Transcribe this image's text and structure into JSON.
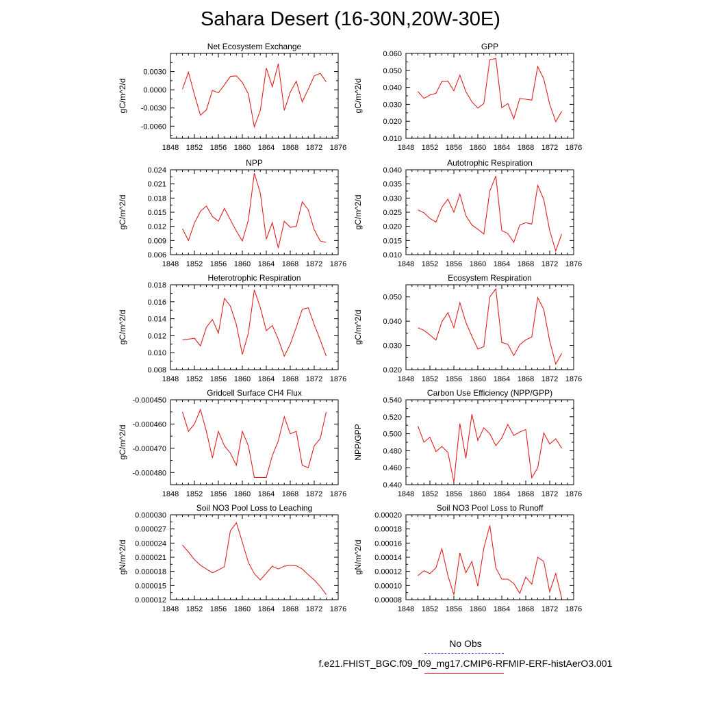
{
  "title": "Sahara Desert (16-30N,20W-30E)",
  "legend": {
    "obs_label": "No Obs",
    "case_label": "f.e21.FHIST_BGC.f09_f09_mg17.CMIP6-RFMIP-ERF-histAerO3.001",
    "obs_color": "#5a5af0",
    "case_color": "#e02020"
  },
  "chart_data": [
    {
      "type": "line",
      "title": "Net Ecosystem Exchange",
      "ylabel": "gC/m^2/d",
      "xlim": [
        1848,
        1876
      ],
      "ylim": [
        -0.008,
        0.006
      ],
      "xticks": [
        "1848",
        "1852",
        "1856",
        "1860",
        "1864",
        "1868",
        "1872",
        "1876"
      ],
      "yticks": [
        -0.006,
        -0.003,
        0.0,
        0.003
      ],
      "ytick_labels": [
        "-0.0060",
        "-0.0030",
        "0.0000",
        "0.0030"
      ],
      "x": [
        1850,
        1851,
        1852,
        1853,
        1854,
        1855,
        1856,
        1857,
        1858,
        1859,
        1860,
        1861,
        1862,
        1863,
        1864,
        1865,
        1866,
        1867,
        1868,
        1869,
        1870,
        1871,
        1872,
        1873,
        1874
      ],
      "series": [
        {
          "values": [
            0.0001,
            0.0029,
            -0.0008,
            -0.0042,
            -0.0033,
            -0.0001,
            -0.0005,
            0.0008,
            0.0022,
            0.0023,
            0.0012,
            -0.0007,
            -0.0061,
            -0.0034,
            0.0036,
            0.0005,
            0.0043,
            -0.0034,
            -0.0004,
            0.0014,
            -0.002,
            0.0001,
            0.0023,
            0.0027,
            0.0013
          ],
          "color": "#e02020"
        }
      ]
    },
    {
      "type": "line",
      "title": "GPP",
      "ylabel": "gC/m^2/d",
      "xlim": [
        1848,
        1876
      ],
      "ylim": [
        0.01,
        0.06
      ],
      "xticks": [
        "1848",
        "1852",
        "1856",
        "1860",
        "1864",
        "1868",
        "1872",
        "1876"
      ],
      "yticks": [
        0.01,
        0.02,
        0.03,
        0.04,
        0.05,
        0.06
      ],
      "ytick_labels": [
        "0.010",
        "0.020",
        "0.030",
        "0.040",
        "0.050",
        "0.060"
      ],
      "x": [
        1850,
        1851,
        1852,
        1853,
        1854,
        1855,
        1856,
        1857,
        1858,
        1859,
        1860,
        1861,
        1862,
        1863,
        1864,
        1865,
        1866,
        1867,
        1868,
        1869,
        1870,
        1871,
        1872,
        1873,
        1874
      ],
      "series": [
        {
          "values": [
            0.0375,
            0.0335,
            0.0355,
            0.0365,
            0.0435,
            0.0437,
            0.038,
            0.0472,
            0.0375,
            0.0315,
            0.0278,
            0.0305,
            0.0563,
            0.057,
            0.028,
            0.0305,
            0.0215,
            0.0335,
            0.033,
            0.0325,
            0.0522,
            0.045,
            0.03,
            0.0198,
            0.0258
          ],
          "color": "#e02020"
        }
      ]
    },
    {
      "type": "line",
      "title": "NPP",
      "ylabel": "gC/m^2/d",
      "xlim": [
        1848,
        1876
      ],
      "ylim": [
        0.006,
        0.024
      ],
      "xticks": [
        "1848",
        "1852",
        "1856",
        "1860",
        "1864",
        "1868",
        "1872",
        "1876"
      ],
      "yticks": [
        0.006,
        0.009,
        0.012,
        0.015,
        0.018,
        0.021,
        0.024
      ],
      "ytick_labels": [
        "0.006",
        "0.009",
        "0.012",
        "0.015",
        "0.018",
        "0.021",
        "0.024"
      ],
      "x": [
        1850,
        1851,
        1852,
        1853,
        1854,
        1855,
        1856,
        1857,
        1858,
        1859,
        1860,
        1861,
        1862,
        1863,
        1864,
        1865,
        1866,
        1867,
        1868,
        1869,
        1870,
        1871,
        1872,
        1873,
        1874
      ],
      "series": [
        {
          "values": [
            0.0115,
            0.009,
            0.0127,
            0.0152,
            0.0163,
            0.0141,
            0.0131,
            0.0158,
            0.0134,
            0.011,
            0.0089,
            0.0133,
            0.0233,
            0.019,
            0.0093,
            0.0128,
            0.0074,
            0.0131,
            0.0118,
            0.012,
            0.0172,
            0.0155,
            0.0113,
            0.0089,
            0.0086
          ],
          "color": "#e02020"
        }
      ]
    },
    {
      "type": "line",
      "title": "Autotrophic Respiration",
      "ylabel": "gC/m^2/d",
      "xlim": [
        1848,
        1876
      ],
      "ylim": [
        0.01,
        0.04
      ],
      "xticks": [
        "1848",
        "1852",
        "1856",
        "1860",
        "1864",
        "1868",
        "1872",
        "1876"
      ],
      "yticks": [
        0.01,
        0.015,
        0.02,
        0.025,
        0.03,
        0.035,
        0.04
      ],
      "ytick_labels": [
        "0.010",
        "0.015",
        "0.020",
        "0.025",
        "0.030",
        "0.035",
        "0.040"
      ],
      "x": [
        1850,
        1851,
        1852,
        1853,
        1854,
        1855,
        1856,
        1857,
        1858,
        1859,
        1860,
        1861,
        1862,
        1863,
        1864,
        1865,
        1866,
        1867,
        1868,
        1869,
        1870,
        1871,
        1872,
        1873,
        1874
      ],
      "series": [
        {
          "values": [
            0.0258,
            0.0248,
            0.0228,
            0.0215,
            0.0268,
            0.0296,
            0.025,
            0.0314,
            0.0238,
            0.0205,
            0.019,
            0.0173,
            0.0325,
            0.0378,
            0.0185,
            0.0175,
            0.0143,
            0.0205,
            0.0213,
            0.0208,
            0.0345,
            0.0295,
            0.0185,
            0.0113,
            0.0173
          ],
          "color": "#e02020"
        }
      ]
    },
    {
      "type": "line",
      "title": "Heterotrophic Respiration",
      "ylabel": "gC/m^2/d",
      "xlim": [
        1848,
        1876
      ],
      "ylim": [
        0.008,
        0.018
      ],
      "xticks": [
        "1848",
        "1852",
        "1856",
        "1860",
        "1864",
        "1868",
        "1872",
        "1876"
      ],
      "yticks": [
        0.008,
        0.01,
        0.012,
        0.014,
        0.016,
        0.018
      ],
      "ytick_labels": [
        "0.008",
        "0.010",
        "0.012",
        "0.014",
        "0.016",
        "0.018"
      ],
      "x": [
        1850,
        1851,
        1852,
        1853,
        1854,
        1855,
        1856,
        1857,
        1858,
        1859,
        1860,
        1861,
        1862,
        1863,
        1864,
        1865,
        1866,
        1867,
        1868,
        1869,
        1870,
        1871,
        1872,
        1873,
        1874
      ],
      "series": [
        {
          "values": [
            0.0115,
            0.0116,
            0.0117,
            0.0108,
            0.013,
            0.0139,
            0.0123,
            0.0164,
            0.0155,
            0.0133,
            0.0098,
            0.0123,
            0.0174,
            0.0153,
            0.0126,
            0.0132,
            0.0116,
            0.0096,
            0.011,
            0.013,
            0.0151,
            0.0153,
            0.0133,
            0.0115,
            0.0096
          ],
          "color": "#e02020"
        }
      ]
    },
    {
      "type": "line",
      "title": "Ecosystem Respiration",
      "ylabel": "gC/m^2/d",
      "xlim": [
        1848,
        1876
      ],
      "ylim": [
        0.02,
        0.055
      ],
      "xticks": [
        "1848",
        "1852",
        "1856",
        "1860",
        "1864",
        "1868",
        "1872",
        "1876"
      ],
      "yticks": [
        0.02,
        0.03,
        0.04,
        0.05
      ],
      "ytick_labels": [
        "0.020",
        "0.030",
        "0.040",
        "0.050"
      ],
      "x": [
        1850,
        1851,
        1852,
        1853,
        1854,
        1855,
        1856,
        1857,
        1858,
        1859,
        1860,
        1861,
        1862,
        1863,
        1864,
        1865,
        1866,
        1867,
        1868,
        1869,
        1870,
        1871,
        1872,
        1873,
        1874
      ],
      "series": [
        {
          "values": [
            0.0373,
            0.0362,
            0.0343,
            0.0322,
            0.0398,
            0.0435,
            0.0373,
            0.0476,
            0.0395,
            0.0338,
            0.0285,
            0.0295,
            0.05,
            0.0533,
            0.0312,
            0.0305,
            0.0258,
            0.0303,
            0.0323,
            0.0335,
            0.0497,
            0.0448,
            0.0318,
            0.0223,
            0.0267
          ],
          "color": "#e02020"
        }
      ]
    },
    {
      "type": "line",
      "title": "Gridcell Surface CH4 Flux",
      "ylabel": "gC/m^2/d",
      "xlim": [
        1848,
        1876
      ],
      "ylim": [
        -0.000485,
        -0.00045
      ],
      "xticks": [
        "1848",
        "1852",
        "1856",
        "1860",
        "1864",
        "1868",
        "1872",
        "1876"
      ],
      "yticks": [
        -0.00048,
        -0.00047,
        -0.00046,
        -0.00045
      ],
      "ytick_labels": [
        "-0.000480",
        "-0.000470",
        "-0.000460",
        "-0.000450"
      ],
      "x": [
        1850,
        1851,
        1852,
        1853,
        1854,
        1855,
        1856,
        1857,
        1858,
        1859,
        1860,
        1861,
        1862,
        1863,
        1864,
        1865,
        1866,
        1867,
        1868,
        1869,
        1870,
        1871,
        1872,
        1873,
        1874
      ],
      "series": [
        {
          "values": [
            -0.000455,
            -0.000463,
            -0.00046,
            -0.000454,
            -0.000463,
            -0.000474,
            -0.000463,
            -0.000469,
            -0.000472,
            -0.000477,
            -0.000463,
            -0.000469,
            -0.000482,
            -0.000482,
            -0.000482,
            -0.000473,
            -0.000467,
            -0.000457,
            -0.000464,
            -0.000463,
            -0.000477,
            -0.000478,
            -0.000469,
            -0.000466,
            -0.000455
          ],
          "color": "#e02020"
        }
      ]
    },
    {
      "type": "line",
      "title": "Carbon Use Efficiency (NPP/GPP)",
      "ylabel": "NPP/GPP",
      "xlim": [
        1848,
        1876
      ],
      "ylim": [
        0.44,
        0.54
      ],
      "xticks": [
        "1848",
        "1852",
        "1856",
        "1860",
        "1864",
        "1868",
        "1872",
        "1876"
      ],
      "yticks": [
        0.44,
        0.46,
        0.48,
        0.5,
        0.52,
        0.54
      ],
      "ytick_labels": [
        "0.440",
        "0.460",
        "0.480",
        "0.500",
        "0.520",
        "0.540"
      ],
      "x": [
        1850,
        1851,
        1852,
        1853,
        1854,
        1855,
        1856,
        1857,
        1858,
        1859,
        1860,
        1861,
        1862,
        1863,
        1864,
        1865,
        1866,
        1867,
        1868,
        1869,
        1870,
        1871,
        1872,
        1873,
        1874
      ],
      "series": [
        {
          "values": [
            0.509,
            0.49,
            0.496,
            0.479,
            0.485,
            0.478,
            0.443,
            0.512,
            0.471,
            0.523,
            0.492,
            0.507,
            0.5,
            0.486,
            0.495,
            0.511,
            0.498,
            0.502,
            0.505,
            0.448,
            0.46,
            0.501,
            0.488,
            0.494,
            0.483
          ],
          "color": "#e02020"
        }
      ]
    },
    {
      "type": "line",
      "title": "Soil NO3 Pool Loss to Leaching",
      "ylabel": "gN/m^2/d",
      "xlim": [
        1848,
        1876
      ],
      "ylim": [
        1.2e-05,
        3e-05
      ],
      "xticks": [
        "1848",
        "1852",
        "1856",
        "1860",
        "1864",
        "1868",
        "1872",
        "1876"
      ],
      "yticks": [
        1.2e-05,
        1.5e-05,
        1.8e-05,
        2.1e-05,
        2.4e-05,
        2.7e-05,
        3e-05
      ],
      "ytick_labels": [
        "0.000012",
        "0.000015",
        "0.000018",
        "0.000021",
        "0.000024",
        "0.000027",
        "0.000030"
      ],
      "x": [
        1850,
        1851,
        1852,
        1853,
        1854,
        1855,
        1856,
        1857,
        1858,
        1859,
        1860,
        1861,
        1862,
        1863,
        1864,
        1865,
        1866,
        1867,
        1868,
        1869,
        1870,
        1871,
        1872,
        1873,
        1874
      ],
      "series": [
        {
          "values": [
            2.36e-05,
            2.21e-05,
            2.05e-05,
            1.93e-05,
            1.85e-05,
            1.77e-05,
            1.83e-05,
            1.9e-05,
            2.66e-05,
            2.83e-05,
            2.42e-05,
            1.99e-05,
            1.75e-05,
            1.62e-05,
            1.76e-05,
            1.91e-05,
            1.85e-05,
            1.91e-05,
            1.93e-05,
            1.92e-05,
            1.85e-05,
            1.73e-05,
            1.62e-05,
            1.48e-05,
            1.31e-05
          ],
          "color": "#e02020"
        }
      ]
    },
    {
      "type": "line",
      "title": "Soil NO3 Pool Loss to Runoff",
      "ylabel": "gN/m^2/d",
      "xlim": [
        1848,
        1876
      ],
      "ylim": [
        8e-05,
        0.0002
      ],
      "xticks": [
        "1848",
        "1852",
        "1856",
        "1860",
        "1864",
        "1868",
        "1872",
        "1876"
      ],
      "yticks": [
        8e-05,
        0.0001,
        0.00012,
        0.00014,
        0.00016,
        0.00018,
        0.0002
      ],
      "ytick_labels": [
        "0.00008",
        "0.00010",
        "0.00012",
        "0.00014",
        "0.00016",
        "0.00018",
        "0.00020"
      ],
      "x": [
        1850,
        1851,
        1852,
        1853,
        1854,
        1855,
        1856,
        1857,
        1858,
        1859,
        1860,
        1861,
        1862,
        1863,
        1864,
        1865,
        1866,
        1867,
        1868,
        1869,
        1870,
        1871,
        1872,
        1873,
        1874
      ],
      "series": [
        {
          "values": [
            0.000114,
            0.000121,
            0.000117,
            0.000125,
            0.000152,
            0.000114,
            8.7e-05,
            0.000146,
            0.000118,
            0.000134,
            9.9e-05,
            0.000153,
            0.000185,
            0.000125,
            0.000109,
            0.000109,
            0.000103,
            8.9e-05,
            0.000112,
            0.000102,
            0.00014,
            0.000134,
            9.1e-05,
            0.000117,
            8.2e-05
          ],
          "color": "#e02020"
        }
      ]
    }
  ]
}
